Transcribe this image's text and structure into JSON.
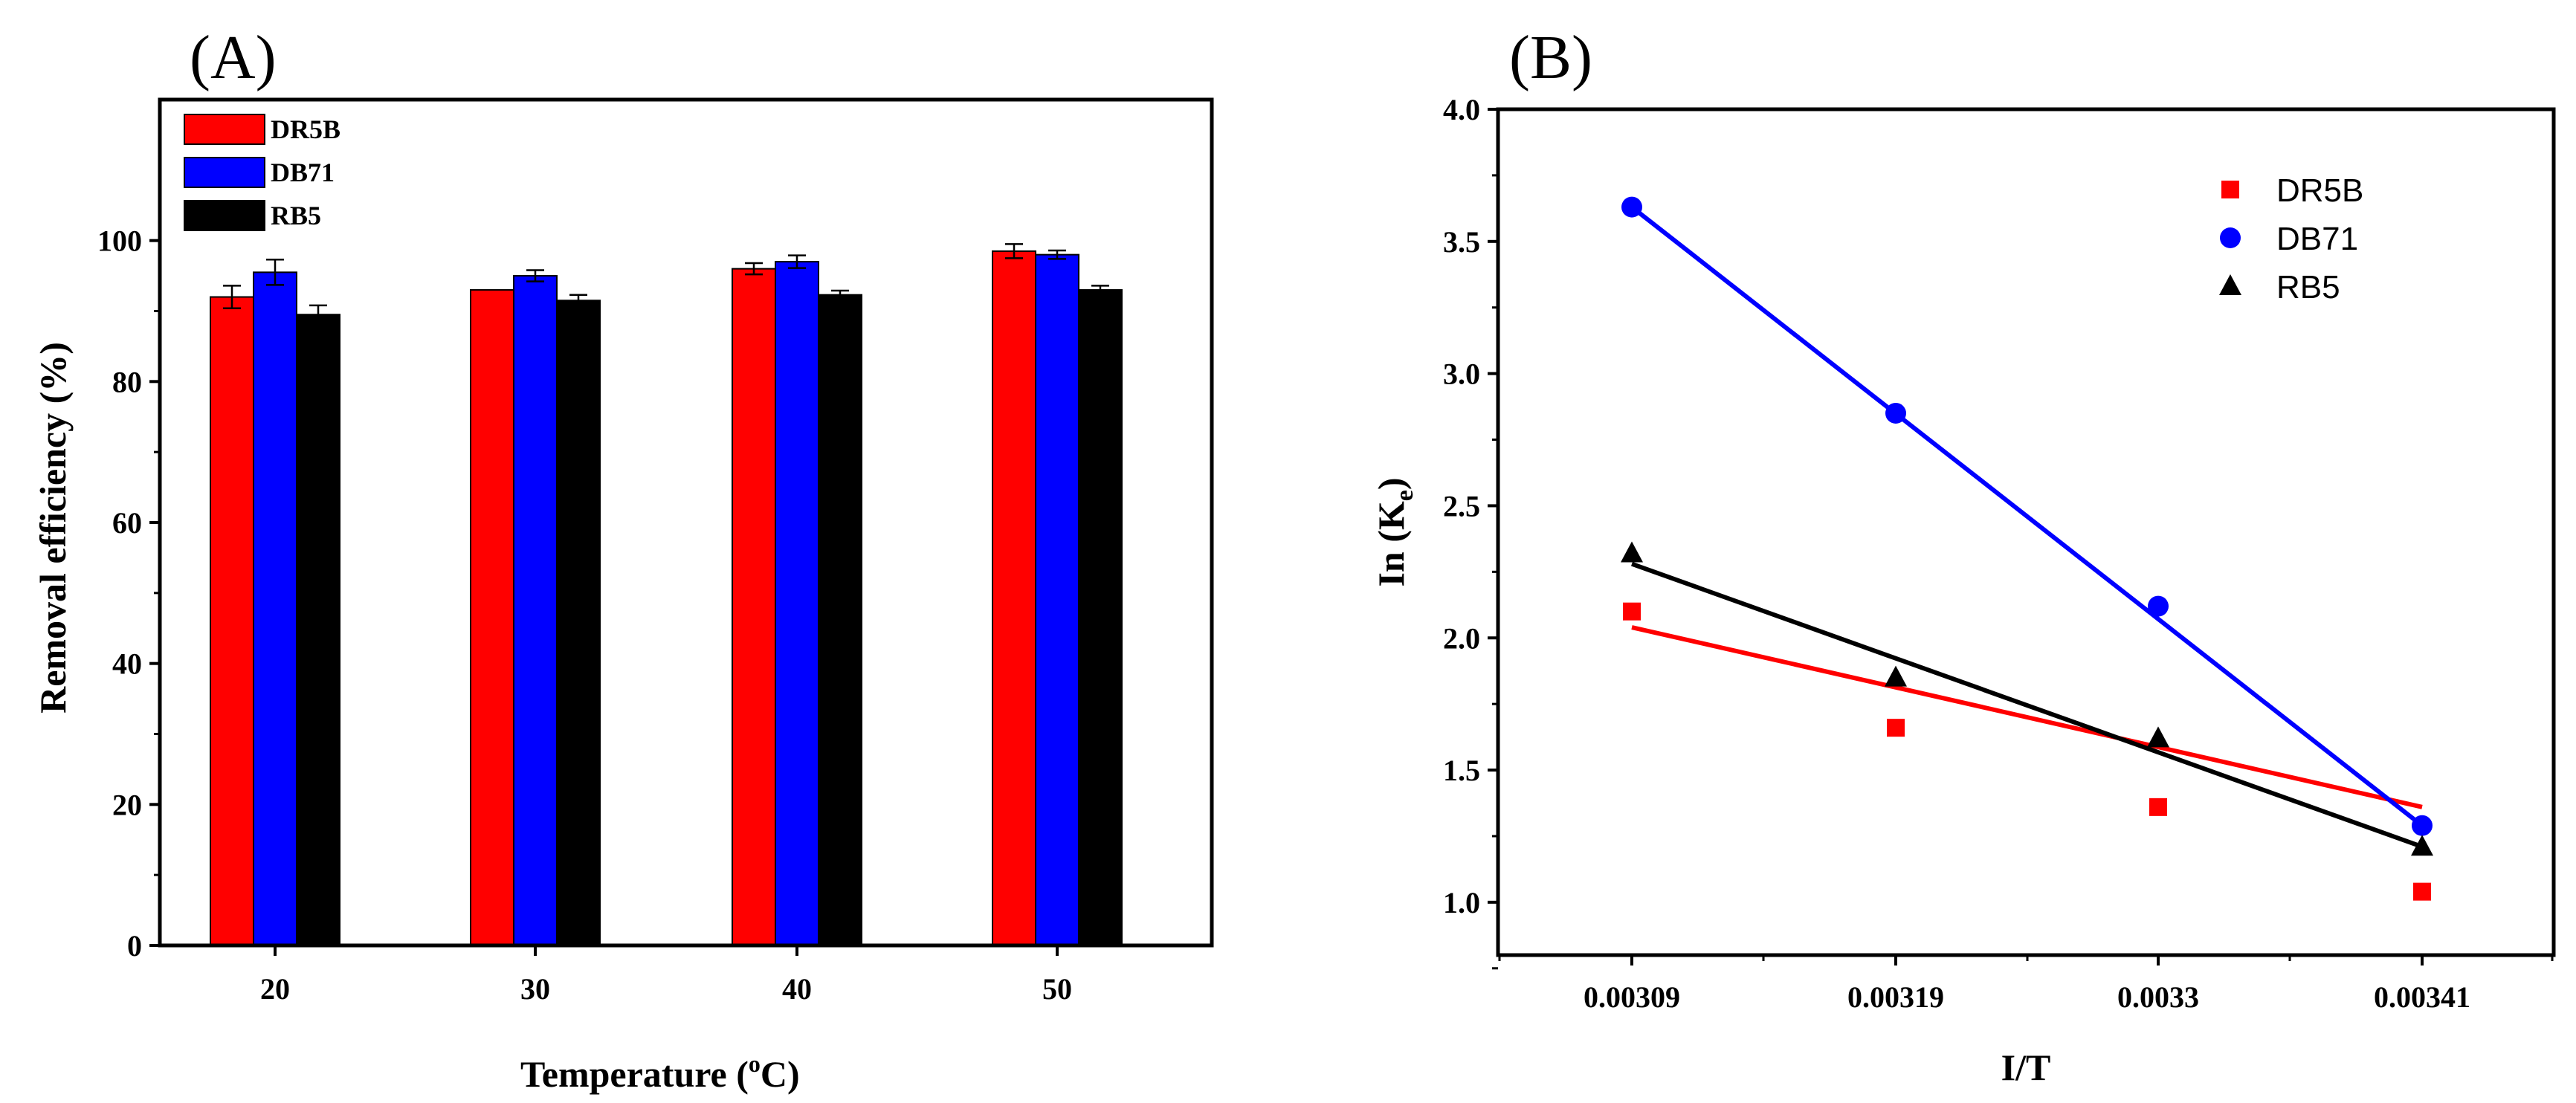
{
  "panels": {
    "a": {
      "label": "(A)"
    },
    "b": {
      "label": "(B)"
    }
  },
  "chart_data": [
    {
      "type": "bar",
      "panel": "(A)",
      "title": "",
      "xlabel": "Temperature (",
      "xlabel_superscript": "o",
      "xlabel_suffix": "C)",
      "ylabel": "Removal efficiency (%)",
      "categories": [
        "20",
        "30",
        "40",
        "50"
      ],
      "ylim": [
        0,
        120
      ],
      "yticks": [
        "0",
        "20",
        "40",
        "60",
        "80",
        "100"
      ],
      "series": [
        {
          "name": "DR5B",
          "color": "#ff0000",
          "values": [
            92.0,
            93.0,
            96.0,
            98.5
          ],
          "errors": [
            1.6,
            0.0,
            0.8,
            1.0
          ]
        },
        {
          "name": "DB71",
          "color": "#0000ff",
          "values": [
            95.5,
            95.0,
            97.0,
            98.0
          ],
          "errors": [
            1.8,
            0.8,
            0.9,
            0.6
          ]
        },
        {
          "name": "RB5",
          "color": "#000000",
          "values": [
            89.5,
            91.5,
            92.3,
            93.0
          ],
          "errors": [
            1.3,
            0.8,
            0.6,
            0.6
          ]
        }
      ],
      "legend": "top-left"
    },
    {
      "type": "scatter",
      "panel": "(B)",
      "title": "",
      "xlabel": "I/T",
      "ylabel": "In (K",
      "ylabel_subscript": "e",
      "ylabel_suffix": ")",
      "x_ticks": [
        "0.00309",
        "0.00319",
        "0.0033",
        "0.00341"
      ],
      "ylim": [
        0.8,
        4.0
      ],
      "yticks": [
        "1.0",
        "1.5",
        "2.0",
        "2.5",
        "3.0",
        "3.5",
        "4.0"
      ],
      "series": [
        {
          "name": "DR5B",
          "color": "#ff0000",
          "marker": "square",
          "y": [
            2.1,
            1.66,
            1.36,
            1.04
          ],
          "fit": [
            2.04,
            1.36
          ]
        },
        {
          "name": "DB71",
          "color": "#0000ff",
          "marker": "circle",
          "y": [
            3.63,
            2.85,
            2.12,
            1.29
          ],
          "fit": [
            3.63,
            1.29
          ]
        },
        {
          "name": "RB5",
          "color": "#000000",
          "marker": "triangle",
          "y": [
            2.32,
            1.85,
            1.62,
            1.21
          ],
          "fit": [
            2.28,
            1.21
          ]
        }
      ],
      "legend": "top-right"
    }
  ]
}
